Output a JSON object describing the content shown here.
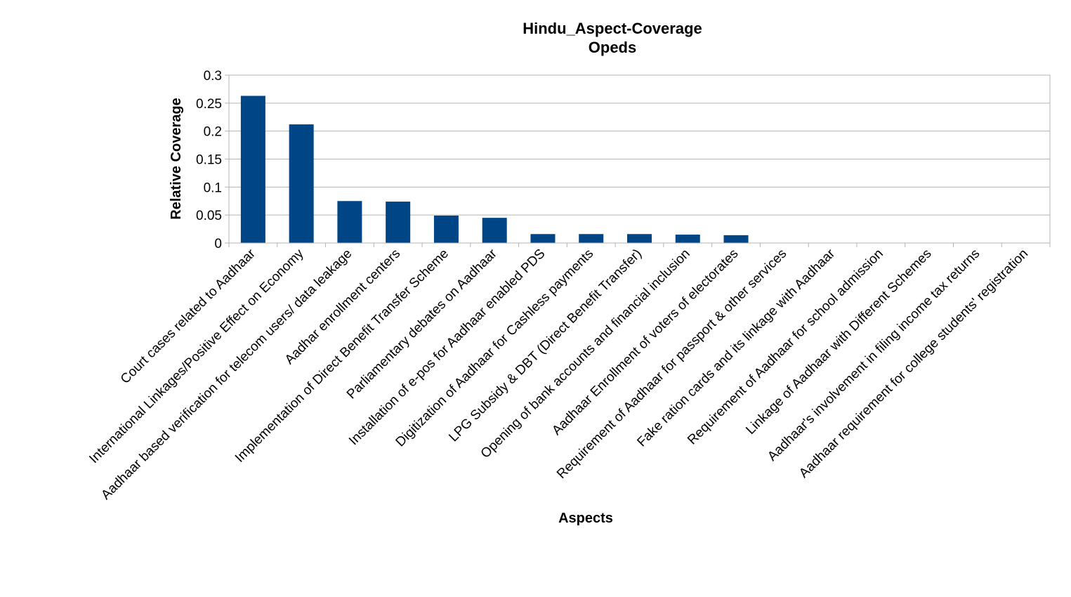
{
  "chart_data": {
    "type": "bar",
    "title": "Hindu_Aspect-Coverage",
    "subtitle": "Opeds",
    "xlabel": "Aspects",
    "ylabel": "Relative Coverage",
    "ylim": [
      0,
      0.3
    ],
    "yticks": [
      "0",
      "0.05",
      "0.1",
      "0.15",
      "0.2",
      "0.25",
      "0.3"
    ],
    "grid": true,
    "legend": "none",
    "bar_color": "#004586",
    "categories": [
      "Court cases related to Aadhaar",
      "International Linkages/Positive Effect on Economy",
      "Aadhaar based verification for telecom users/ data leakage",
      "Aadhar enrollment centers",
      "Implementation of Direct Benefit Transfer Scheme",
      "Parliamentary debates on Aadhaar",
      "Installation of e-pos for Aadhaar enabled PDS",
      "Digitization of Aadhaar for Cashless payments",
      "LPG Subsidy & DBT (Direct Benefit Transfer)",
      "Opening of bank accounts and financial inclusion",
      "Aadhaar Enrollment of voters of electorates",
      "Requirement of Aadhaar for passport & other services",
      "Fake ration cards and its linkage with Aadhaar",
      "Requirement of Aadhaar for school admission",
      "Linkage of Aadhaar with Different Schemes",
      "Aadhaar's involvement in filing income tax returns",
      "Aadhaar requirement for college students' registration"
    ],
    "values": [
      0.263,
      0.212,
      0.075,
      0.074,
      0.049,
      0.045,
      0.016,
      0.016,
      0.016,
      0.015,
      0.014,
      0,
      0,
      0,
      0,
      0,
      0
    ]
  }
}
